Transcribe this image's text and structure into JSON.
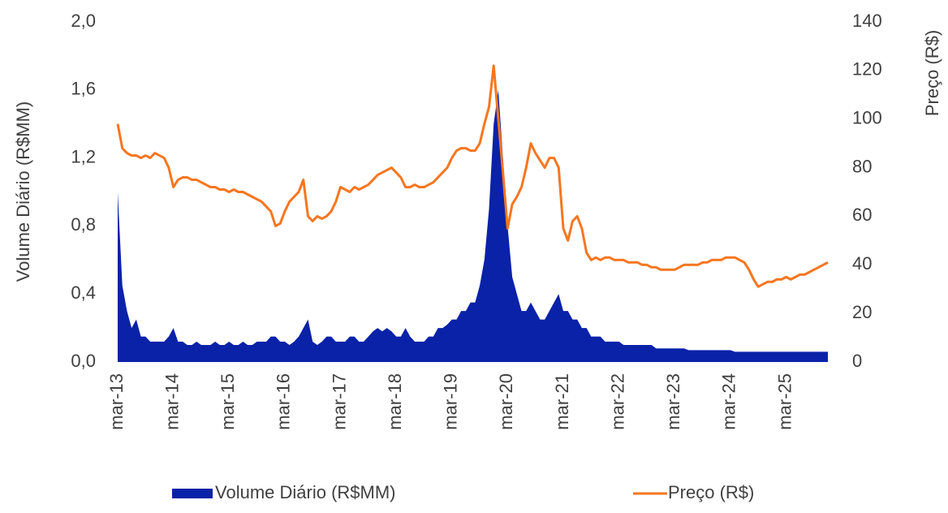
{
  "chart_data": {
    "type": "area-line",
    "y_label": "Volume Diário (R$MM)",
    "y2_label": "Preço (R$)",
    "categories": [
      "mar-13",
      null,
      null,
      null,
      null,
      null,
      null,
      null,
      null,
      null,
      null,
      null,
      "mar-14",
      null,
      null,
      null,
      null,
      null,
      null,
      null,
      null,
      null,
      null,
      null,
      "mar-15",
      null,
      null,
      null,
      null,
      null,
      null,
      null,
      null,
      null,
      null,
      null,
      "mar-16",
      null,
      null,
      null,
      null,
      null,
      null,
      null,
      null,
      null,
      null,
      null,
      "mar-17",
      null,
      null,
      null,
      null,
      null,
      null,
      null,
      null,
      null,
      null,
      null,
      "mar-18",
      null,
      null,
      null,
      null,
      null,
      null,
      null,
      null,
      null,
      null,
      null,
      "mar-19",
      null,
      null,
      null,
      null,
      null,
      null,
      null,
      null,
      null,
      null,
      null,
      "mar-20",
      null,
      null,
      null,
      null,
      null,
      null,
      null,
      null,
      null,
      null,
      null,
      "mar-21",
      null,
      null,
      null,
      null,
      null,
      null,
      null,
      null,
      null,
      null,
      null,
      "mar-22",
      null,
      null,
      null,
      null,
      null,
      null,
      null,
      null,
      null,
      null,
      null,
      "mar-23",
      null,
      null,
      null,
      null,
      null,
      null,
      null,
      null,
      null,
      null,
      null,
      "mar-24",
      null,
      null,
      null,
      null,
      null,
      null,
      null,
      null,
      null,
      null,
      null,
      "mar-25",
      null,
      null,
      null,
      null,
      null,
      null,
      null,
      null,
      null
    ],
    "series": [
      {
        "name": "Volume Diário (R$MM)",
        "type": "area",
        "color": "#0a22a8",
        "axis": "y",
        "values": [
          1.0,
          0.45,
          0.3,
          0.2,
          0.25,
          0.15,
          0.15,
          0.12,
          0.12,
          0.12,
          0.12,
          0.15,
          0.2,
          0.12,
          0.12,
          0.1,
          0.1,
          0.12,
          0.1,
          0.1,
          0.1,
          0.12,
          0.1,
          0.1,
          0.12,
          0.1,
          0.1,
          0.12,
          0.1,
          0.1,
          0.12,
          0.12,
          0.12,
          0.15,
          0.15,
          0.12,
          0.12,
          0.1,
          0.12,
          0.15,
          0.2,
          0.25,
          0.12,
          0.1,
          0.12,
          0.15,
          0.15,
          0.12,
          0.12,
          0.12,
          0.15,
          0.15,
          0.12,
          0.12,
          0.15,
          0.18,
          0.2,
          0.18,
          0.2,
          0.18,
          0.15,
          0.15,
          0.2,
          0.15,
          0.12,
          0.12,
          0.12,
          0.15,
          0.15,
          0.2,
          0.2,
          0.22,
          0.25,
          0.25,
          0.3,
          0.3,
          0.35,
          0.35,
          0.45,
          0.6,
          0.9,
          1.4,
          1.6,
          1.2,
          0.8,
          0.5,
          0.4,
          0.3,
          0.3,
          0.35,
          0.3,
          0.25,
          0.25,
          0.3,
          0.35,
          0.4,
          0.3,
          0.3,
          0.25,
          0.25,
          0.2,
          0.2,
          0.15,
          0.15,
          0.15,
          0.12,
          0.12,
          0.12,
          0.12,
          0.1,
          0.1,
          0.1,
          0.1,
          0.1,
          0.1,
          0.1,
          0.08,
          0.08,
          0.08,
          0.08,
          0.08,
          0.08,
          0.08,
          0.07,
          0.07,
          0.07,
          0.07,
          0.07,
          0.07,
          0.07,
          0.07,
          0.07,
          0.07,
          0.06,
          0.06,
          0.06,
          0.06,
          0.06,
          0.06,
          0.06,
          0.06,
          0.06,
          0.06,
          0.06,
          0.06,
          0.06,
          0.06,
          0.06,
          0.06,
          0.06,
          0.06,
          0.06,
          0.06,
          0.06
        ]
      },
      {
        "name": "Preço (R$)",
        "type": "line",
        "color": "#f7761f",
        "axis": "y2",
        "values": [
          98,
          88,
          86,
          85,
          85,
          84,
          85,
          84,
          86,
          85,
          84,
          80,
          72,
          75,
          76,
          76,
          75,
          75,
          74,
          73,
          72,
          72,
          71,
          71,
          70,
          71,
          70,
          70,
          69,
          68,
          67,
          66,
          64,
          62,
          56,
          57,
          62,
          66,
          68,
          70,
          75,
          60,
          58,
          60,
          59,
          60,
          62,
          66,
          72,
          71,
          70,
          72,
          71,
          72,
          73,
          75,
          77,
          78,
          79,
          80,
          78,
          76,
          72,
          72,
          73,
          72,
          72,
          73,
          74,
          76,
          78,
          80,
          84,
          87,
          88,
          88,
          87,
          87,
          90,
          98,
          105,
          122,
          100,
          78,
          55,
          65,
          68,
          72,
          80,
          90,
          86,
          83,
          80,
          84,
          84,
          80,
          55,
          50,
          58,
          60,
          55,
          45,
          42,
          43,
          42,
          43,
          43,
          42,
          42,
          42,
          41,
          41,
          41,
          40,
          40,
          39,
          39,
          38,
          38,
          38,
          38,
          39,
          40,
          40,
          40,
          40,
          41,
          41,
          42,
          42,
          42,
          43,
          43,
          43,
          42,
          41,
          38,
          34,
          31,
          32,
          33,
          33,
          34,
          34,
          35,
          34,
          35,
          36,
          36,
          37,
          38,
          39,
          40,
          41
        ]
      }
    ],
    "ylim": [
      0,
      2
    ],
    "yticks": [
      {
        "value": 0,
        "label": "0,0"
      },
      {
        "value": 0.4,
        "label": "0,4"
      },
      {
        "value": 0.8,
        "label": "0,8"
      },
      {
        "value": 1.2,
        "label": "1,2"
      },
      {
        "value": 1.6,
        "label": "1,6"
      },
      {
        "value": 2,
        "label": "2,0"
      }
    ],
    "y2lim": [
      0,
      140
    ],
    "y2ticks": [
      0,
      20,
      40,
      60,
      80,
      100,
      120,
      140
    ]
  }
}
